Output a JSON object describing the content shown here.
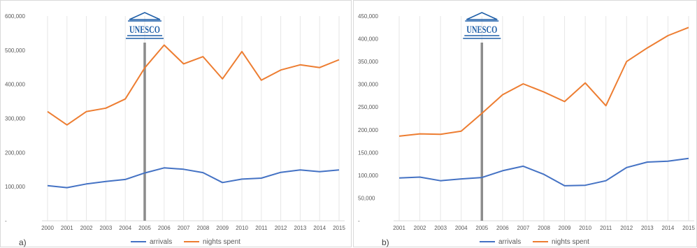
{
  "colors": {
    "arrivals": "#4472c4",
    "nights_spent": "#ed7d31",
    "marker": "#8c8c8c",
    "grid": "#e6e6e6",
    "logo": "#1f5fa8"
  },
  "logo": {
    "text": "UNESCO"
  },
  "chart_data": [
    {
      "type": "line",
      "panel_label": "a)",
      "title": "",
      "xlabel": "",
      "ylabel": "",
      "x": [
        "2000",
        "2001",
        "2002",
        "2003",
        "2004",
        "2005",
        "2006",
        "2007",
        "2008",
        "2009",
        "2010",
        "2011",
        "2012",
        "2013",
        "2014",
        "2015"
      ],
      "ylim": [
        0,
        600000
      ],
      "yticks": [
        0,
        100000,
        200000,
        300000,
        400000,
        500000,
        600000
      ],
      "ytick_labels": [
        "-",
        "100,000",
        "200,000",
        "300,000",
        "400,000",
        "500,000",
        "600,000"
      ],
      "vertical_marker_x": "2005",
      "grid": true,
      "legend": "bottom",
      "series": [
        {
          "name": "arrivals",
          "values": [
            103000,
            97000,
            108000,
            115000,
            121000,
            140000,
            155000,
            151000,
            141000,
            112000,
            122000,
            125000,
            142000,
            149000,
            144000,
            149000
          ]
        },
        {
          "name": "nights spent",
          "values": [
            320000,
            281000,
            320000,
            330000,
            357000,
            448000,
            515000,
            460000,
            481000,
            416000,
            496000,
            412000,
            442000,
            457000,
            449000,
            472000
          ]
        }
      ]
    },
    {
      "type": "line",
      "panel_label": "b)",
      "title": "",
      "xlabel": "",
      "ylabel": "",
      "x": [
        "2001",
        "2002",
        "2003",
        "2004",
        "2005",
        "2006",
        "2007",
        "2008",
        "2009",
        "2010",
        "2011",
        "2012",
        "2013",
        "2014",
        "2015"
      ],
      "ylim": [
        0,
        450000
      ],
      "yticks": [
        0,
        50000,
        100000,
        150000,
        200000,
        250000,
        300000,
        350000,
        400000,
        450000
      ],
      "ytick_labels": [
        "-",
        "50,000",
        "100,000",
        "150,000",
        "200,000",
        "250,000",
        "300,000",
        "350,000",
        "400,000",
        "450,000"
      ],
      "vertical_marker_x": "2005",
      "grid": true,
      "legend": "bottom",
      "series": [
        {
          "name": "arrivals",
          "values": [
            94000,
            96000,
            88000,
            92000,
            95000,
            110000,
            120000,
            102000,
            77000,
            78000,
            88000,
            117000,
            129000,
            131000,
            137000
          ]
        },
        {
          "name": "nights spent",
          "values": [
            186000,
            191000,
            190000,
            197000,
            236000,
            277000,
            301000,
            283000,
            262000,
            303000,
            253000,
            350000,
            380000,
            407000,
            425000
          ]
        }
      ]
    }
  ]
}
